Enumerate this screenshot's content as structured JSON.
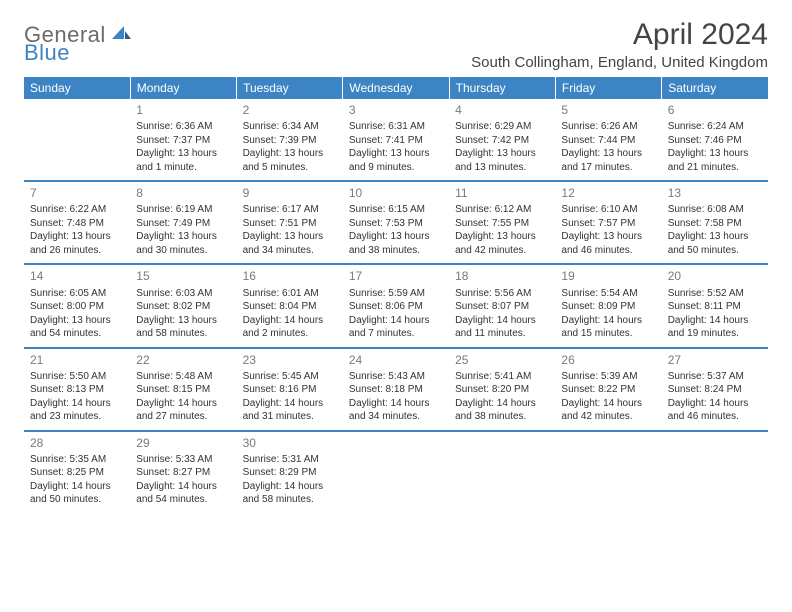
{
  "logo": {
    "general": "General",
    "blue": "Blue"
  },
  "title": "April 2024",
  "location": "South Collingham, England, United Kingdom",
  "colors": {
    "accent": "#3d84c4",
    "header_text": "#ffffff",
    "body_text": "#333333",
    "daynum": "#7a7a7a",
    "logo_gray": "#6b6b6b",
    "background": "#ffffff"
  },
  "day_headers": [
    "Sunday",
    "Monday",
    "Tuesday",
    "Wednesday",
    "Thursday",
    "Friday",
    "Saturday"
  ],
  "weeks": [
    [
      {
        "n": "",
        "sr": "",
        "ss": "",
        "d1": "",
        "d2": ""
      },
      {
        "n": "1",
        "sr": "Sunrise: 6:36 AM",
        "ss": "Sunset: 7:37 PM",
        "d1": "Daylight: 13 hours",
        "d2": "and 1 minute."
      },
      {
        "n": "2",
        "sr": "Sunrise: 6:34 AM",
        "ss": "Sunset: 7:39 PM",
        "d1": "Daylight: 13 hours",
        "d2": "and 5 minutes."
      },
      {
        "n": "3",
        "sr": "Sunrise: 6:31 AM",
        "ss": "Sunset: 7:41 PM",
        "d1": "Daylight: 13 hours",
        "d2": "and 9 minutes."
      },
      {
        "n": "4",
        "sr": "Sunrise: 6:29 AM",
        "ss": "Sunset: 7:42 PM",
        "d1": "Daylight: 13 hours",
        "d2": "and 13 minutes."
      },
      {
        "n": "5",
        "sr": "Sunrise: 6:26 AM",
        "ss": "Sunset: 7:44 PM",
        "d1": "Daylight: 13 hours",
        "d2": "and 17 minutes."
      },
      {
        "n": "6",
        "sr": "Sunrise: 6:24 AM",
        "ss": "Sunset: 7:46 PM",
        "d1": "Daylight: 13 hours",
        "d2": "and 21 minutes."
      }
    ],
    [
      {
        "n": "7",
        "sr": "Sunrise: 6:22 AM",
        "ss": "Sunset: 7:48 PM",
        "d1": "Daylight: 13 hours",
        "d2": "and 26 minutes."
      },
      {
        "n": "8",
        "sr": "Sunrise: 6:19 AM",
        "ss": "Sunset: 7:49 PM",
        "d1": "Daylight: 13 hours",
        "d2": "and 30 minutes."
      },
      {
        "n": "9",
        "sr": "Sunrise: 6:17 AM",
        "ss": "Sunset: 7:51 PM",
        "d1": "Daylight: 13 hours",
        "d2": "and 34 minutes."
      },
      {
        "n": "10",
        "sr": "Sunrise: 6:15 AM",
        "ss": "Sunset: 7:53 PM",
        "d1": "Daylight: 13 hours",
        "d2": "and 38 minutes."
      },
      {
        "n": "11",
        "sr": "Sunrise: 6:12 AM",
        "ss": "Sunset: 7:55 PM",
        "d1": "Daylight: 13 hours",
        "d2": "and 42 minutes."
      },
      {
        "n": "12",
        "sr": "Sunrise: 6:10 AM",
        "ss": "Sunset: 7:57 PM",
        "d1": "Daylight: 13 hours",
        "d2": "and 46 minutes."
      },
      {
        "n": "13",
        "sr": "Sunrise: 6:08 AM",
        "ss": "Sunset: 7:58 PM",
        "d1": "Daylight: 13 hours",
        "d2": "and 50 minutes."
      }
    ],
    [
      {
        "n": "14",
        "sr": "Sunrise: 6:05 AM",
        "ss": "Sunset: 8:00 PM",
        "d1": "Daylight: 13 hours",
        "d2": "and 54 minutes."
      },
      {
        "n": "15",
        "sr": "Sunrise: 6:03 AM",
        "ss": "Sunset: 8:02 PM",
        "d1": "Daylight: 13 hours",
        "d2": "and 58 minutes."
      },
      {
        "n": "16",
        "sr": "Sunrise: 6:01 AM",
        "ss": "Sunset: 8:04 PM",
        "d1": "Daylight: 14 hours",
        "d2": "and 2 minutes."
      },
      {
        "n": "17",
        "sr": "Sunrise: 5:59 AM",
        "ss": "Sunset: 8:06 PM",
        "d1": "Daylight: 14 hours",
        "d2": "and 7 minutes."
      },
      {
        "n": "18",
        "sr": "Sunrise: 5:56 AM",
        "ss": "Sunset: 8:07 PM",
        "d1": "Daylight: 14 hours",
        "d2": "and 11 minutes."
      },
      {
        "n": "19",
        "sr": "Sunrise: 5:54 AM",
        "ss": "Sunset: 8:09 PM",
        "d1": "Daylight: 14 hours",
        "d2": "and 15 minutes."
      },
      {
        "n": "20",
        "sr": "Sunrise: 5:52 AM",
        "ss": "Sunset: 8:11 PM",
        "d1": "Daylight: 14 hours",
        "d2": "and 19 minutes."
      }
    ],
    [
      {
        "n": "21",
        "sr": "Sunrise: 5:50 AM",
        "ss": "Sunset: 8:13 PM",
        "d1": "Daylight: 14 hours",
        "d2": "and 23 minutes."
      },
      {
        "n": "22",
        "sr": "Sunrise: 5:48 AM",
        "ss": "Sunset: 8:15 PM",
        "d1": "Daylight: 14 hours",
        "d2": "and 27 minutes."
      },
      {
        "n": "23",
        "sr": "Sunrise: 5:45 AM",
        "ss": "Sunset: 8:16 PM",
        "d1": "Daylight: 14 hours",
        "d2": "and 31 minutes."
      },
      {
        "n": "24",
        "sr": "Sunrise: 5:43 AM",
        "ss": "Sunset: 8:18 PM",
        "d1": "Daylight: 14 hours",
        "d2": "and 34 minutes."
      },
      {
        "n": "25",
        "sr": "Sunrise: 5:41 AM",
        "ss": "Sunset: 8:20 PM",
        "d1": "Daylight: 14 hours",
        "d2": "and 38 minutes."
      },
      {
        "n": "26",
        "sr": "Sunrise: 5:39 AM",
        "ss": "Sunset: 8:22 PM",
        "d1": "Daylight: 14 hours",
        "d2": "and 42 minutes."
      },
      {
        "n": "27",
        "sr": "Sunrise: 5:37 AM",
        "ss": "Sunset: 8:24 PM",
        "d1": "Daylight: 14 hours",
        "d2": "and 46 minutes."
      }
    ],
    [
      {
        "n": "28",
        "sr": "Sunrise: 5:35 AM",
        "ss": "Sunset: 8:25 PM",
        "d1": "Daylight: 14 hours",
        "d2": "and 50 minutes."
      },
      {
        "n": "29",
        "sr": "Sunrise: 5:33 AM",
        "ss": "Sunset: 8:27 PM",
        "d1": "Daylight: 14 hours",
        "d2": "and 54 minutes."
      },
      {
        "n": "30",
        "sr": "Sunrise: 5:31 AM",
        "ss": "Sunset: 8:29 PM",
        "d1": "Daylight: 14 hours",
        "d2": "and 58 minutes."
      },
      {
        "n": "",
        "sr": "",
        "ss": "",
        "d1": "",
        "d2": ""
      },
      {
        "n": "",
        "sr": "",
        "ss": "",
        "d1": "",
        "d2": ""
      },
      {
        "n": "",
        "sr": "",
        "ss": "",
        "d1": "",
        "d2": ""
      },
      {
        "n": "",
        "sr": "",
        "ss": "",
        "d1": "",
        "d2": ""
      }
    ]
  ]
}
